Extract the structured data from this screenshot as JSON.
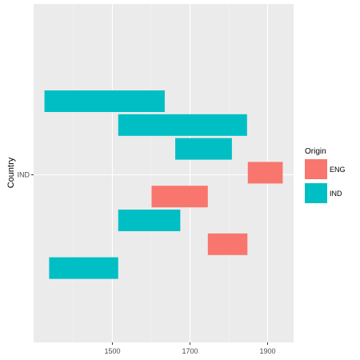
{
  "chart_data": {
    "type": "bar",
    "orientation": "horizontal-range",
    "ylabel": "Country",
    "y_categories": [
      "IND"
    ],
    "x_ticks": [
      1500,
      1700,
      1900
    ],
    "xlim": [
      1297,
      1967
    ],
    "grid": true,
    "legend": {
      "title": "Origin",
      "placement": "right",
      "entries": [
        {
          "label": "ENG",
          "color": "#F8766D"
        },
        {
          "label": "IND",
          "color": "#00BFC4"
        }
      ]
    },
    "colors": {
      "panel_background": "#EBEBEB",
      "grid_major": "#FFFFFF",
      "grid_minor": "#F5F5F5"
    },
    "bars": [
      {
        "origin": "IND",
        "start": 1325,
        "end": 1635
      },
      {
        "origin": "IND",
        "start": 1515,
        "end": 1847
      },
      {
        "origin": "IND",
        "start": 1662,
        "end": 1808
      },
      {
        "origin": "ENG",
        "start": 1849,
        "end": 1939
      },
      {
        "origin": "ENG",
        "start": 1601,
        "end": 1746
      },
      {
        "origin": "IND",
        "start": 1515,
        "end": 1675
      },
      {
        "origin": "ENG",
        "start": 1746,
        "end": 1848
      },
      {
        "origin": "IND",
        "start": 1337,
        "end": 1515
      }
    ]
  }
}
